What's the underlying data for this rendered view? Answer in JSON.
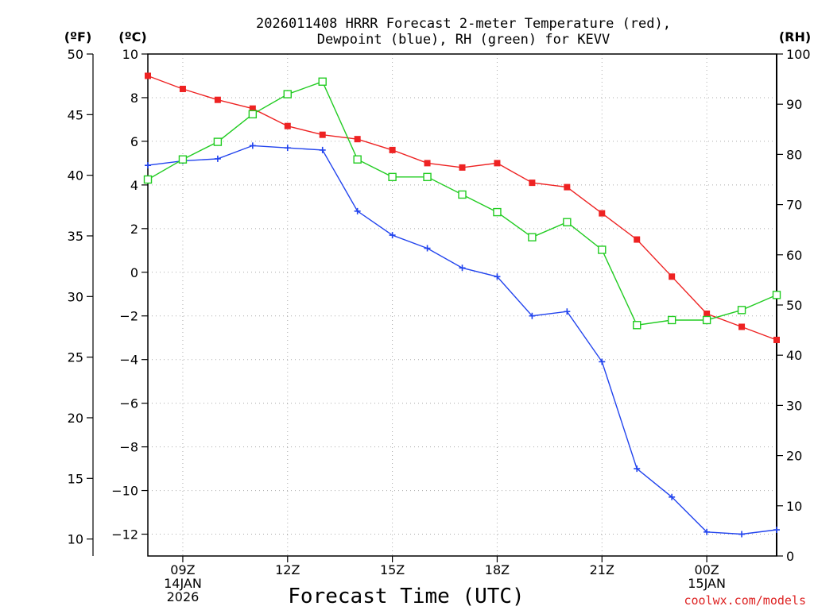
{
  "chart_data": {
    "type": "line",
    "title": "2026011408 HRRR Forecast 2-meter Temperature (red),",
    "subtitle": "Dewpoint (blue), RH (green) for KEVV",
    "xlabel": "Forecast Time (UTC)",
    "credit": "coolwx.com/models",
    "units": {
      "fahrenheit": "(ºF)",
      "celsius": "(ºC)",
      "rh": "(RH)"
    },
    "x": [
      8,
      9,
      10,
      11,
      12,
      13,
      14,
      15,
      16,
      17,
      18,
      19,
      20,
      21,
      22,
      23,
      24,
      25,
      26
    ],
    "x_unit": "hours since 14JAN 00Z",
    "xlim": [
      8,
      26
    ],
    "x_ticks": [
      {
        "x": 9,
        "lines": [
          "09Z",
          "14JAN",
          "2026"
        ]
      },
      {
        "x": 12,
        "lines": [
          "12Z"
        ]
      },
      {
        "x": 15,
        "lines": [
          "15Z"
        ]
      },
      {
        "x": 18,
        "lines": [
          "18Z"
        ]
      },
      {
        "x": 21,
        "lines": [
          "21Z"
        ]
      },
      {
        "x": 24,
        "lines": [
          "00Z",
          "15JAN"
        ]
      }
    ],
    "y_left_celsius": {
      "range": [
        -13.0,
        10.0
      ],
      "ticks": [
        10,
        8,
        6,
        4,
        2,
        0,
        -2,
        -4,
        -6,
        -8,
        -10,
        -12
      ]
    },
    "y_left_fahrenheit": {
      "ticks": [
        50,
        45,
        40,
        35,
        30,
        25,
        20,
        15,
        10
      ]
    },
    "y_right_rh": {
      "range": [
        0,
        100
      ],
      "ticks": [
        100,
        90,
        80,
        70,
        60,
        50,
        40,
        30,
        20,
        10,
        0
      ]
    },
    "grid": true,
    "series": [
      {
        "name": "Temperature",
        "color": "#ee2222",
        "axis": "celsius",
        "marker": "filled-square",
        "values": [
          9.0,
          8.4,
          7.9,
          7.5,
          6.7,
          6.3,
          6.1,
          5.6,
          5.0,
          4.8,
          5.0,
          4.1,
          3.9,
          2.7,
          1.5,
          -0.2,
          -1.9,
          -2.5,
          -3.1
        ]
      },
      {
        "name": "Dewpoint",
        "color": "#2244ee",
        "axis": "celsius",
        "marker": "plus",
        "values": [
          4.9,
          5.1,
          5.2,
          5.8,
          5.7,
          5.6,
          2.8,
          1.7,
          1.1,
          0.2,
          -0.2,
          -2.0,
          -1.8,
          -4.1,
          -9.0,
          -10.3,
          -11.9,
          -12.0,
          -11.8
        ]
      },
      {
        "name": "RH",
        "color": "#22cc22",
        "axis": "rh",
        "marker": "open-square",
        "values": [
          75,
          79,
          82.5,
          88,
          92,
          94.5,
          79,
          75.5,
          75.5,
          72,
          68.5,
          63.5,
          66.5,
          61,
          46,
          47,
          47,
          49,
          52
        ]
      }
    ]
  }
}
